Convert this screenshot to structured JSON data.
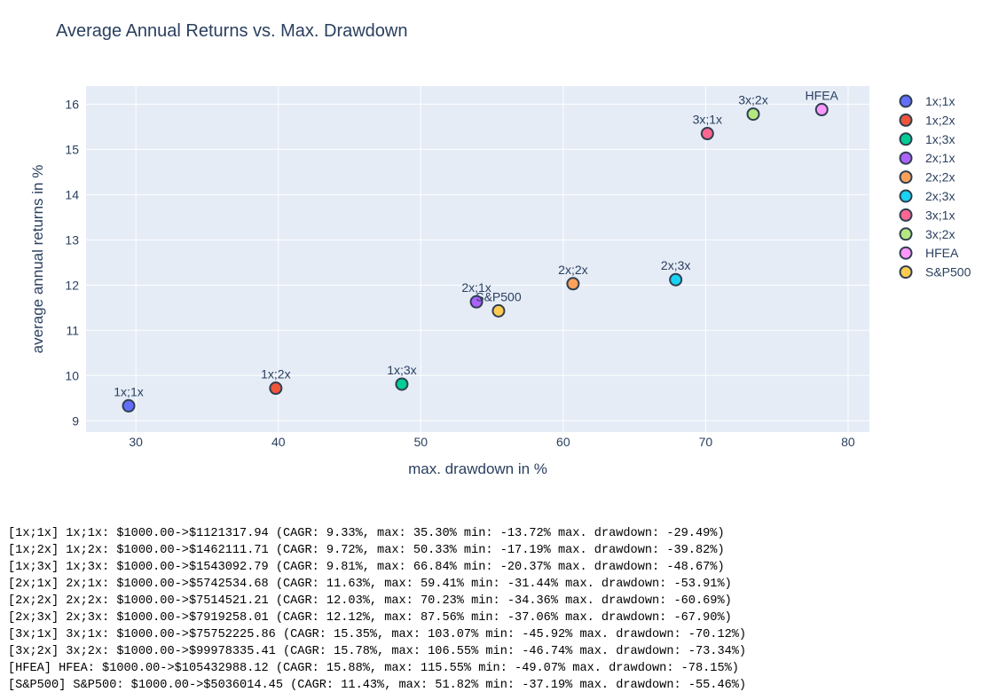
{
  "chart_data": {
    "type": "scatter",
    "title": "Average Annual Returns vs. Max. Drawdown",
    "xlabel": "max. drawdown in %",
    "ylabel": "average annual returns in %",
    "xlim": [
      26.5,
      81.5
    ],
    "ylim": [
      8.75,
      16.4
    ],
    "xticks": [
      30,
      40,
      50,
      60,
      70,
      80
    ],
    "yticks": [
      9,
      10,
      11,
      12,
      13,
      14,
      15,
      16
    ],
    "grid": true,
    "legend_position": "top-right",
    "series": [
      {
        "name": "1x;1x",
        "x": 29.49,
        "y": 9.33,
        "label": "1x;1x",
        "color": "#636efa"
      },
      {
        "name": "1x;2x",
        "x": 39.82,
        "y": 9.72,
        "label": "1x;2x",
        "color": "#ef553b"
      },
      {
        "name": "1x;3x",
        "x": 48.67,
        "y": 9.81,
        "label": "1x;3x",
        "color": "#00cc96"
      },
      {
        "name": "2x;1x",
        "x": 53.91,
        "y": 11.63,
        "label": "2x;1x",
        "color": "#ab63fa"
      },
      {
        "name": "2x;2x",
        "x": 60.69,
        "y": 12.03,
        "label": "2x;2x",
        "color": "#ffa15a"
      },
      {
        "name": "2x;3x",
        "x": 67.9,
        "y": 12.12,
        "label": "2x;3x",
        "color": "#19d3f3"
      },
      {
        "name": "3x;1x",
        "x": 70.12,
        "y": 15.35,
        "label": "3x;1x",
        "color": "#ff6692"
      },
      {
        "name": "3x;2x",
        "x": 73.34,
        "y": 15.78,
        "label": "3x;2x",
        "color": "#b6e880"
      },
      {
        "name": "HFEA",
        "x": 78.15,
        "y": 15.88,
        "label": "HFEA",
        "color": "#ff97ff"
      },
      {
        "name": "S&P500",
        "x": 55.46,
        "y": 11.43,
        "label": "S&P500",
        "color": "#fecb52"
      }
    ]
  },
  "log_lines": [
    "[1x;1x] 1x;1x: $1000.00->$1121317.94 (CAGR: 9.33%, max: 35.30% min: -13.72% max. drawdown: -29.49%)",
    "[1x;2x] 1x;2x: $1000.00->$1462111.71 (CAGR: 9.72%, max: 50.33% min: -17.19% max. drawdown: -39.82%)",
    "[1x;3x] 1x;3x: $1000.00->$1543092.79 (CAGR: 9.81%, max: 66.84% min: -20.37% max. drawdown: -48.67%)",
    "[2x;1x] 2x;1x: $1000.00->$5742534.68 (CAGR: 11.63%, max: 59.41% min: -31.44% max. drawdown: -53.91%)",
    "[2x;2x] 2x;2x: $1000.00->$7514521.21 (CAGR: 12.03%, max: 70.23% min: -34.36% max. drawdown: -60.69%)",
    "[2x;3x] 2x;3x: $1000.00->$7919258.01 (CAGR: 12.12%, max: 87.56% min: -37.06% max. drawdown: -67.90%)",
    "[3x;1x] 3x;1x: $1000.00->$75752225.86 (CAGR: 15.35%, max: 103.07% min: -45.92% max. drawdown: -70.12%)",
    "[3x;2x] 3x;2x: $1000.00->$99978335.41 (CAGR: 15.78%, max: 106.55% min: -46.74% max. drawdown: -73.34%)",
    "[HFEA] HFEA: $1000.00->$105432988.12 (CAGR: 15.88%, max: 115.55% min: -49.07% max. drawdown: -78.15%)",
    "[S&P500] S&P500: $1000.00->$5036014.45 (CAGR: 11.43%, max: 51.82% min: -37.19% max. drawdown: -55.46%)"
  ]
}
